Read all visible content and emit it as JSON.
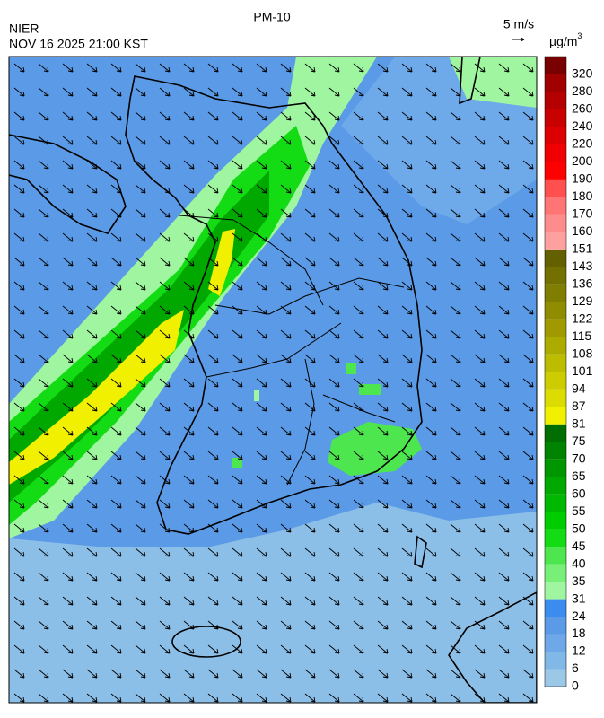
{
  "header": {
    "title": "PM-10",
    "agency": "NIER",
    "timestamp": "NOV 16 2025 21:00 KST",
    "vector_scale": "5 m/s",
    "unit": "µg/m",
    "unit_superscript": "3"
  },
  "legend": {
    "labels": [
      0,
      6,
      12,
      18,
      24,
      31,
      35,
      40,
      45,
      50,
      55,
      60,
      65,
      70,
      75,
      81,
      87,
      94,
      101,
      108,
      115,
      122,
      129,
      136,
      143,
      151,
      160,
      170,
      180,
      190,
      200,
      220,
      240,
      260,
      280,
      320
    ],
    "colors": [
      "#9cc8e8",
      "#80b8e8",
      "#6ea8e8",
      "#5a9ae6",
      "#3c8cf0",
      "#a0f5a0",
      "#78f078",
      "#4ee64e",
      "#14dc14",
      "#00cc00",
      "#00b800",
      "#00a800",
      "#009600",
      "#008400",
      "#006e00",
      "#f0f000",
      "#dcdc00",
      "#cccc00",
      "#bcbc00",
      "#acac00",
      "#a09a00",
      "#908c00",
      "#807e00",
      "#747000",
      "#646000",
      "#ffa0a0",
      "#ff8c8c",
      "#ff7474",
      "#ff5050",
      "#ff0000",
      "#f00000",
      "#dc0000",
      "#c80000",
      "#b40000",
      "#a00000",
      "#780000"
    ]
  }
}
